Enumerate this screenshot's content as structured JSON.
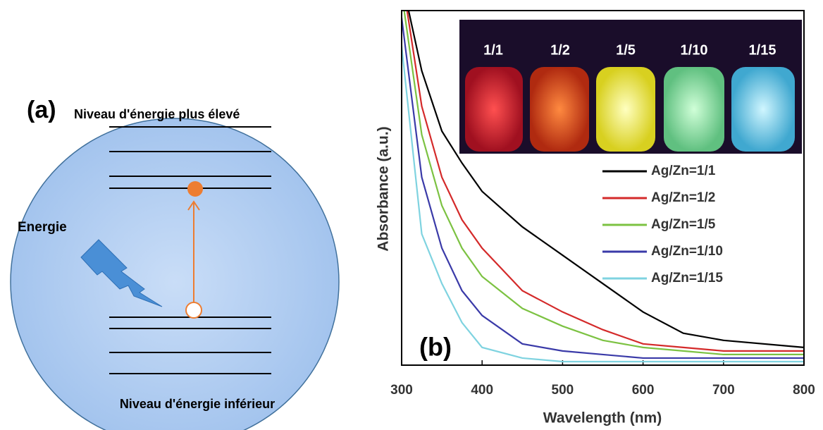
{
  "diagram": {
    "panel_label": "(a)",
    "upper_label": "Niveau d'énergie plus élevé",
    "lower_label": "Niveau d'énergie inférieur",
    "energy_label": "Energie"
  },
  "chart_data": {
    "type": "line",
    "panel_label": "(b)",
    "x_label": "Wavelength (nm)",
    "y_label": "Absorbance (a.u.)",
    "inset_labels": [
      "1/1",
      "1/2",
      "1/5",
      "1/10",
      "1/15"
    ],
    "x": [
      300,
      325,
      350,
      375,
      400,
      450,
      500,
      550,
      600,
      650,
      700,
      800
    ],
    "xlim": [
      300,
      800
    ],
    "xticks": [
      300,
      400,
      500,
      600,
      700,
      800
    ],
    "ylim": [
      0,
      1
    ],
    "series": [
      {
        "name": "Ag/Zn=1/1",
        "color": "#000000",
        "values": [
          1.09,
          0.83,
          0.66,
          0.57,
          0.49,
          0.39,
          0.31,
          0.23,
          0.15,
          0.09,
          0.07,
          0.05
        ]
      },
      {
        "name": "Ag/Zn=1/2",
        "color": "#d42a2a",
        "values": [
          1.1,
          0.73,
          0.53,
          0.41,
          0.33,
          0.21,
          0.15,
          0.1,
          0.06,
          0.05,
          0.04,
          0.04
        ]
      },
      {
        "name": "Ag/Zn=1/5",
        "color": "#7cc242",
        "values": [
          1.05,
          0.65,
          0.45,
          0.33,
          0.25,
          0.16,
          0.11,
          0.07,
          0.05,
          0.04,
          0.03,
          0.03
        ]
      },
      {
        "name": "Ag/Zn=1/10",
        "color": "#3a3aa8",
        "values": [
          0.98,
          0.53,
          0.33,
          0.21,
          0.14,
          0.06,
          0.04,
          0.03,
          0.02,
          0.02,
          0.02,
          0.02
        ]
      },
      {
        "name": "Ag/Zn=1/15",
        "color": "#7fd3e0",
        "values": [
          0.9,
          0.37,
          0.23,
          0.12,
          0.05,
          0.02,
          0.01,
          0.01,
          0.01,
          0.01,
          0.01,
          0.01
        ]
      }
    ]
  }
}
